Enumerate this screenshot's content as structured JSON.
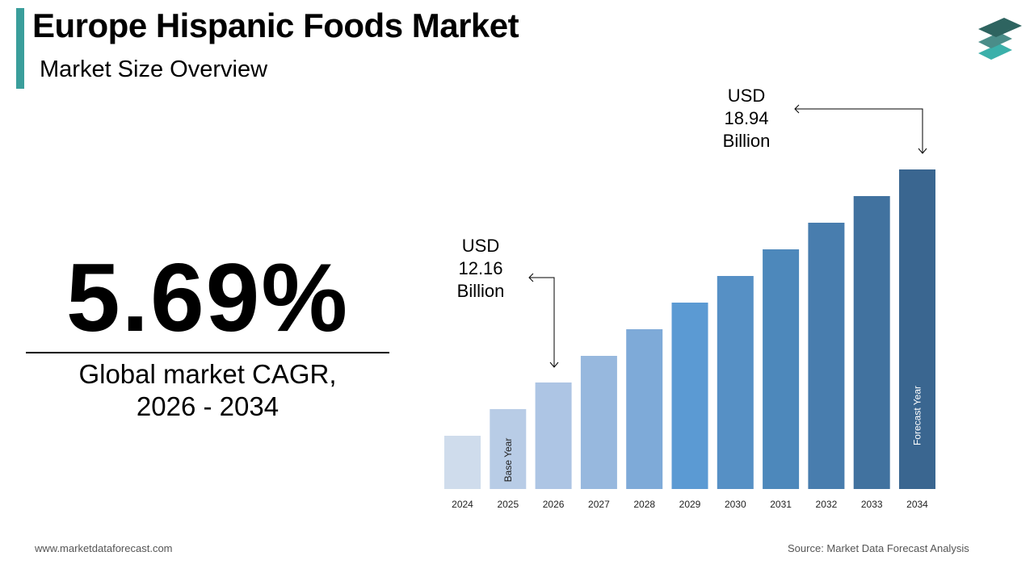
{
  "header": {
    "title": "Europe Hispanic Foods Market",
    "subtitle": "Market Size Overview",
    "accent_color": "#3a9e9b",
    "logo_icon": "stacked-layers-logo"
  },
  "summary": {
    "cagr_value": "5.69%",
    "cagr_label_line1": "Global market CAGR,",
    "cagr_label_line2": "2026 - 2034"
  },
  "chart_data": {
    "type": "bar",
    "categories": [
      "2024",
      "2025",
      "2026",
      "2027",
      "2028",
      "2029",
      "2030",
      "2031",
      "2032",
      "2033",
      "2034"
    ],
    "series": [
      {
        "values": [
          null,
          null,
          12.16,
          null,
          null,
          null,
          null,
          null,
          null,
          null,
          18.94
        ]
      }
    ],
    "unit": "USD Billion",
    "colors": [
      "#cfdcec",
      "#b8cce6",
      "#adc5e4",
      "#97b8de",
      "#7eaad8",
      "#5b9ad3",
      "#5690c5",
      "#4d88bb",
      "#487dae",
      "#41729f",
      "#3a6690"
    ],
    "bar_labels": {
      "2025": "Base Year",
      "2034": "Forecast Year"
    },
    "annotations": [
      {
        "category": "2026",
        "line1": "USD",
        "line2": "12.16",
        "line3": "Billion"
      },
      {
        "category": "2034",
        "line1": "USD",
        "line2": "18.94",
        "line3": "Billion"
      }
    ],
    "grid": false,
    "y_axis_shown": false
  },
  "footer": {
    "website": "www.marketdataforecast.com",
    "source": "Source: Market Data Forecast Analysis"
  }
}
